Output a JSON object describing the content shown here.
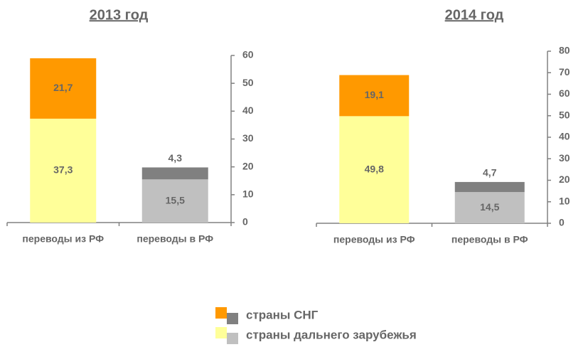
{
  "chart_data": [
    {
      "type": "stacked_bar",
      "title": "2013 год",
      "categories": [
        "переводы из РФ",
        "переводы в РФ"
      ],
      "series": [
        {
          "colors": [
            "#ffff99",
            "#c0c0c0"
          ],
          "values": [
            37.3,
            15.5
          ],
          "value_labels": [
            "37,3",
            "15,5"
          ]
        },
        {
          "colors": [
            "#ff9900",
            "#808080"
          ],
          "values": [
            21.7,
            4.3
          ],
          "value_labels": [
            "21,7",
            "4,3"
          ]
        }
      ],
      "ylim": [
        0,
        60
      ],
      "yticks": [
        0,
        10,
        20,
        30,
        40,
        50,
        60
      ],
      "y_axis_side": "right"
    },
    {
      "type": "stacked_bar",
      "title": "2014 год",
      "categories": [
        "переводы из РФ",
        "переводы в РФ"
      ],
      "series": [
        {
          "colors": [
            "#ffff99",
            "#c0c0c0"
          ],
          "values": [
            49.8,
            14.5
          ],
          "value_labels": [
            "49,8",
            "14,5"
          ]
        },
        {
          "colors": [
            "#ff9900",
            "#808080"
          ],
          "values": [
            19.1,
            4.7
          ],
          "value_labels": [
            "19,1",
            "4,7"
          ]
        }
      ],
      "ylim": [
        0,
        80
      ],
      "yticks": [
        0,
        10,
        20,
        30,
        40,
        50,
        60,
        70,
        80
      ],
      "y_axis_side": "right"
    }
  ],
  "legend": [
    {
      "name": "страны СНГ",
      "colors": [
        "#ff9900",
        "#808080"
      ]
    },
    {
      "name": "страны дальнего зарубежья",
      "colors": [
        "#ffff99",
        "#c0c0c0"
      ]
    }
  ]
}
